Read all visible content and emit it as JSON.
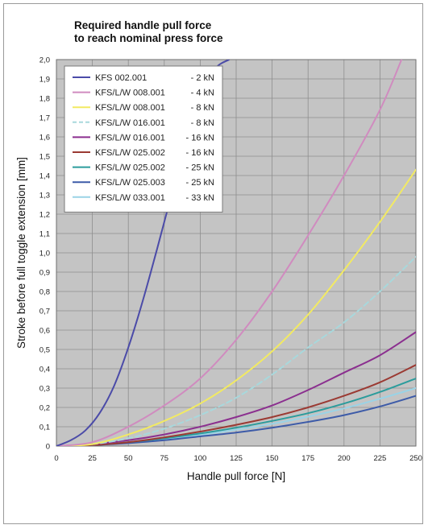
{
  "chart_data": {
    "type": "line",
    "title": "Required handle pull force\nto reach nominal press force",
    "xlabel": "Handle pull force [N]",
    "ylabel": "Stroke before full toggle extension [mm]",
    "xlim": [
      0,
      250
    ],
    "ylim": [
      0,
      2.0
    ],
    "xticks": [
      "0",
      "25",
      "50",
      "75",
      "100",
      "125",
      "150",
      "175",
      "200",
      "225",
      "250"
    ],
    "yticks": [
      "0",
      "0,1",
      "0,2",
      "0,3",
      "0,4",
      "0,5",
      "0,6",
      "0,7",
      "0,8",
      "0,9",
      "1,0",
      "1,1",
      "1,2",
      "1,3",
      "1,4",
      "1,5",
      "1,6",
      "1,7",
      "1,8",
      "1,9",
      "2,0"
    ],
    "grid": true,
    "background_color": "#c4c4c4",
    "grid_color": "#8e8e8e",
    "legend_position": "top-left",
    "series": [
      {
        "name": "KFS 002.001",
        "suffix": "- 2 kN",
        "color": "#4b4ba8",
        "dashed": false,
        "x": [
          0,
          10,
          20,
          30,
          40,
          50,
          60,
          70,
          80,
          90,
          100,
          110,
          120
        ],
        "y": [
          0,
          0.03,
          0.08,
          0.17,
          0.31,
          0.51,
          0.75,
          1.02,
          1.3,
          1.57,
          1.8,
          1.95,
          2.0
        ]
      },
      {
        "name": "KFS/L/W 008.001",
        "suffix": "- 4 kN",
        "color": "#d08bbf",
        "dashed": false,
        "x": [
          0,
          25,
          50,
          75,
          100,
          125,
          150,
          175,
          200,
          225,
          240
        ],
        "y": [
          0,
          0.02,
          0.1,
          0.21,
          0.35,
          0.55,
          0.8,
          1.09,
          1.4,
          1.74,
          2.0
        ]
      },
      {
        "name": "KFS/L/W 008.001",
        "suffix": "- 8 kN",
        "color": "#f2ea62",
        "dashed": false,
        "x": [
          0,
          25,
          50,
          75,
          100,
          125,
          150,
          175,
          200,
          225,
          250
        ],
        "y": [
          0,
          0.01,
          0.06,
          0.13,
          0.22,
          0.34,
          0.49,
          0.68,
          0.91,
          1.16,
          1.43
        ]
      },
      {
        "name": "KFS/L/W 016.001",
        "suffix": "- 8 kN",
        "color": "#a8d8dc",
        "dashed": true,
        "x": [
          0,
          25,
          50,
          75,
          100,
          125,
          150,
          175,
          200,
          225,
          250
        ],
        "y": [
          0,
          0.01,
          0.04,
          0.09,
          0.16,
          0.25,
          0.37,
          0.51,
          0.64,
          0.8,
          0.98
        ]
      },
      {
        "name": "KFS/L/W 016.001",
        "suffix": "- 16 kN",
        "color": "#8b2f8f",
        "dashed": false,
        "x": [
          0,
          25,
          50,
          75,
          100,
          125,
          150,
          175,
          200,
          225,
          250
        ],
        "y": [
          0,
          0.01,
          0.03,
          0.06,
          0.1,
          0.15,
          0.21,
          0.29,
          0.38,
          0.47,
          0.59
        ]
      },
      {
        "name": "KFS/L/W 025.002",
        "suffix": "- 16 kN",
        "color": "#9b3a33",
        "dashed": false,
        "x": [
          0,
          25,
          50,
          75,
          100,
          125,
          150,
          175,
          200,
          225,
          250
        ],
        "y": [
          0,
          0.005,
          0.02,
          0.045,
          0.075,
          0.11,
          0.15,
          0.2,
          0.26,
          0.33,
          0.42
        ]
      },
      {
        "name": "KFS/L/W 025.002",
        "suffix": "- 25 kN",
        "color": "#2b9c9c",
        "dashed": false,
        "x": [
          0,
          25,
          50,
          75,
          100,
          125,
          150,
          175,
          200,
          225,
          250
        ],
        "y": [
          0,
          0.005,
          0.02,
          0.04,
          0.065,
          0.095,
          0.13,
          0.17,
          0.22,
          0.28,
          0.35
        ]
      },
      {
        "name": "KFS/L/W 025.003",
        "suffix": "- 25 kN",
        "color": "#3d5ba8",
        "dashed": false,
        "x": [
          0,
          25,
          50,
          75,
          100,
          125,
          150,
          175,
          200,
          225,
          250
        ],
        "y": [
          0,
          0.005,
          0.015,
          0.03,
          0.05,
          0.07,
          0.095,
          0.125,
          0.16,
          0.205,
          0.26
        ]
      },
      {
        "name": "KFS/L/W 033.001",
        "suffix": "- 33 kN",
        "color": "#9ad3e6",
        "dashed": false,
        "x": [
          0,
          25,
          50,
          75,
          100,
          125,
          150,
          175,
          200,
          225,
          250
        ],
        "y": [
          0,
          0.005,
          0.018,
          0.035,
          0.058,
          0.085,
          0.115,
          0.152,
          0.195,
          0.245,
          0.3
        ]
      }
    ]
  }
}
